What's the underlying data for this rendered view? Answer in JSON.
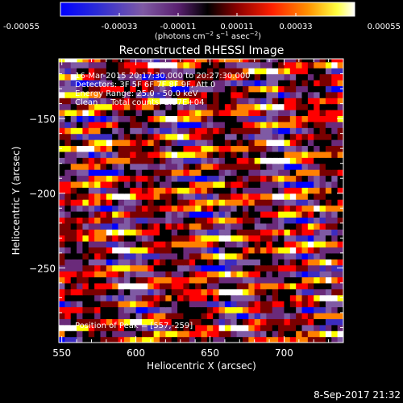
{
  "colorbar": {
    "tick_labels": [
      "-0.00055",
      "-0.00033",
      "-0.00011",
      "0.00011",
      "0.00033",
      "0.00055"
    ],
    "tick_values": [
      -0.00055,
      -0.00033,
      -0.00011,
      0.00011,
      0.00033,
      0.00055
    ],
    "range": [
      -0.00055,
      0.00055
    ],
    "unit_base": "(photons cm",
    "unit_exp1": "−2",
    "unit_mid1": " s",
    "unit_exp2": "−1",
    "unit_mid2": " asec",
    "unit_exp3": "−2",
    "unit_end": ")"
  },
  "info": {
    "line1": "16-Mar-2015 20:17:30.000 to 20:27:30.000",
    "line2": "Detectors: 3F 5F 6F 7F 8F 9F, Att 0",
    "line3": "Energy Range: 25.0 - 50.0 keV",
    "line4": "Clean     Total counts: 2.37E+04",
    "peak": "Position of Peak = [557,-259]"
  },
  "timestamp": "8-Sep-2017 21:32",
  "chart_data": {
    "type": "heatmap",
    "title": "Reconstructed RHESSI Image",
    "xlabel": "Heliocentric X (arcsec)",
    "ylabel": "Heliocentric Y (arcsec)",
    "xlim": [
      548,
      740
    ],
    "ylim": [
      -300,
      -110
    ],
    "x_ticks": [
      550,
      600,
      650,
      700
    ],
    "x_tick_labels": [
      "550",
      "600",
      "650",
      "700"
    ],
    "y_ticks": [
      -250,
      -200,
      -150
    ],
    "y_tick_labels": [
      "−250",
      "−200",
      "−150"
    ],
    "colormap": [
      "#0000ff",
      "#3c2cc0",
      "#7f5aa4",
      "#6a2a7a",
      "#000000",
      "#7a0000",
      "#ff0000",
      "#ff8000",
      "#ffff00",
      "#ffffff"
    ],
    "pixel_size": [
      4,
      4
    ],
    "peak_position": [
      557,
      -259
    ]
  }
}
